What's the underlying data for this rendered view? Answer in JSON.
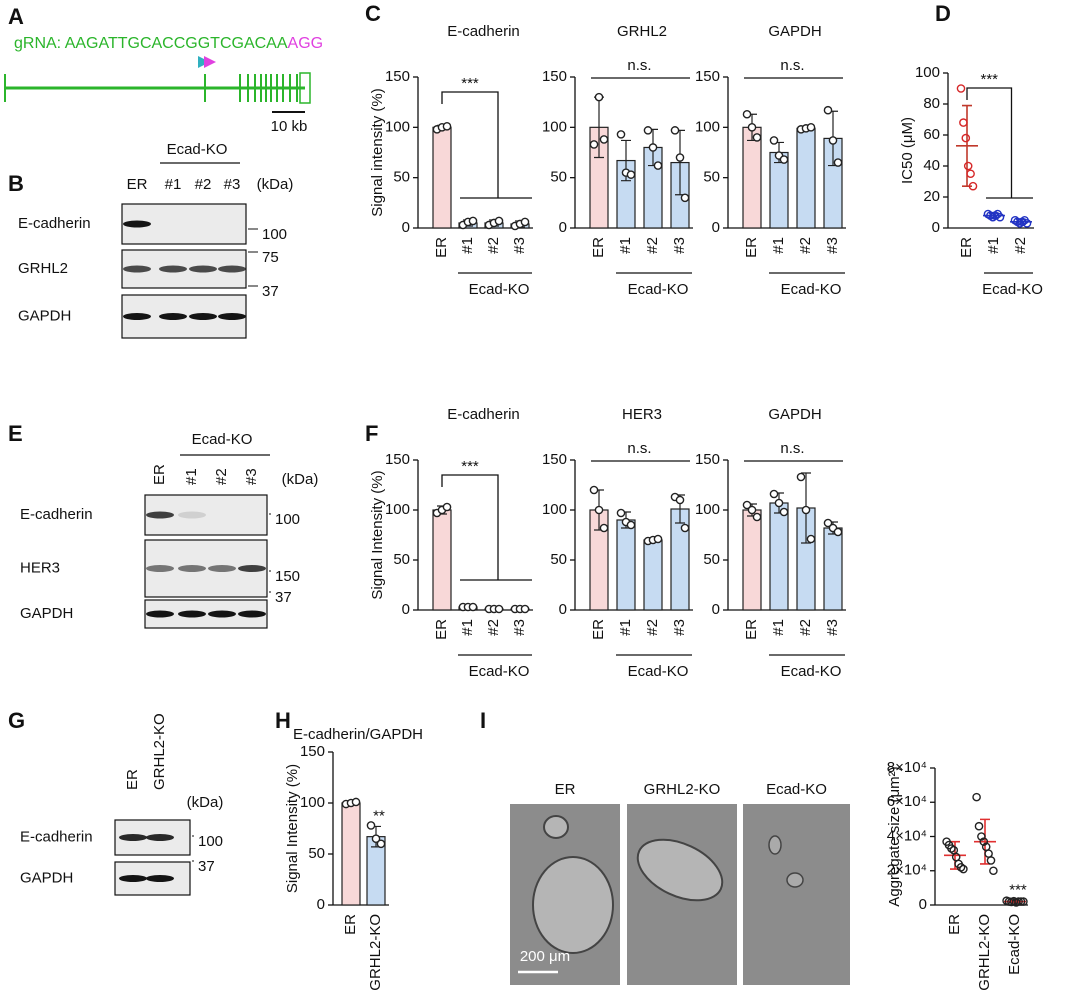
{
  "panel_labels": [
    "A",
    "B",
    "C",
    "D",
    "E",
    "F",
    "G",
    "H",
    "I"
  ],
  "gene": {
    "grna": "gRNA: AAGATTGCACCGGTCGACAA",
    "pam": "AGG",
    "scale": "10 kb"
  },
  "blots": [
    {
      "group": "Ecad-KO",
      "lanes": [
        "ER",
        "#1",
        "#2",
        "#3"
      ],
      "unit": "(kDa)",
      "rows": [
        "E-cadherin",
        "GRHL2",
        "GAPDH"
      ],
      "markers": [
        100,
        75,
        37
      ]
    },
    {
      "group": "Ecad-KO",
      "lanes": [
        "ER",
        "#1",
        "#2",
        "#3"
      ],
      "unit": "(kDa)",
      "rows": [
        "E-cadherin",
        "HER3",
        "GAPDH"
      ],
      "markers": [
        100,
        150,
        37
      ]
    },
    {
      "lanes": [
        "ER",
        "GRHL2-KO"
      ],
      "unit": "(kDa)",
      "rows": [
        "E-cadherin",
        "GAPDH"
      ],
      "markers": [
        100,
        37
      ]
    }
  ],
  "images": {
    "labels": [
      "ER",
      "GRHL2-KO",
      "Ecad-KO"
    ],
    "scale": "200 μm"
  },
  "chart_data": [
    {
      "type": "bar",
      "title": "E-cadherin",
      "ylabel": "Signal intensity (%)",
      "categories": [
        "ER",
        "#1",
        "#2",
        "#3"
      ],
      "group": "Ecad-KO",
      "colors": [
        "#f8d8d8",
        "#c6dbf2",
        "#c6dbf2",
        "#c6dbf2"
      ],
      "values": [
        100,
        5,
        5,
        4
      ],
      "errors": [
        2,
        3,
        3,
        3
      ],
      "points": [
        [
          98,
          100,
          101
        ],
        [
          3,
          6,
          7
        ],
        [
          3,
          5,
          7
        ],
        [
          2,
          4,
          6
        ]
      ],
      "ylim": [
        0,
        150
      ],
      "yticks": [
        0,
        50,
        100,
        150
      ],
      "significance": "***"
    },
    {
      "type": "bar",
      "title": "GRHL2",
      "categories": [
        "ER",
        "#1",
        "#2",
        "#3"
      ],
      "group": "Ecad-KO",
      "colors": [
        "#f8d8d8",
        "#c6dbf2",
        "#c6dbf2",
        "#c6dbf2"
      ],
      "values": [
        100,
        67,
        80,
        65
      ],
      "errors": [
        30,
        20,
        18,
        32
      ],
      "points": [
        [
          83,
          130,
          88
        ],
        [
          93,
          55,
          53
        ],
        [
          97,
          80,
          62
        ],
        [
          97,
          70,
          30
        ]
      ],
      "ylim": [
        0,
        150
      ],
      "yticks": [
        0,
        50,
        100,
        150
      ],
      "significance": "n.s."
    },
    {
      "type": "bar",
      "title": "GAPDH",
      "categories": [
        "ER",
        "#1",
        "#2",
        "#3"
      ],
      "group": "Ecad-KO",
      "colors": [
        "#f8d8d8",
        "#c6dbf2",
        "#c6dbf2",
        "#c6dbf2"
      ],
      "values": [
        100,
        75,
        99,
        89
      ],
      "errors": [
        13,
        10,
        2,
        27
      ],
      "points": [
        [
          113,
          100,
          90
        ],
        [
          87,
          72,
          68
        ],
        [
          98,
          99,
          100
        ],
        [
          117,
          87,
          65
        ]
      ],
      "ylim": [
        0,
        150
      ],
      "yticks": [
        0,
        50,
        100,
        150
      ],
      "significance": "n.s."
    },
    {
      "type": "dot",
      "ylabel": "IC50 (μM)",
      "categories": [
        "ER",
        "#1",
        "#2"
      ],
      "group": "Ecad-KO",
      "colors": [
        "#c0392b",
        "#2b3bbf",
        "#2b3bbf"
      ],
      "point_colors": [
        "#d62728",
        "#2233c4",
        "#2233c4"
      ],
      "values": [
        53,
        8,
        4
      ],
      "errors": [
        26,
        1.5,
        1.5
      ],
      "points": [
        [
          90,
          68,
          58,
          40,
          35,
          27
        ],
        [
          9,
          8,
          7,
          8,
          9,
          7
        ],
        [
          5,
          4,
          3,
          4,
          5,
          3
        ]
      ],
      "ylim": [
        0,
        100
      ],
      "yticks": [
        0,
        20,
        40,
        60,
        80,
        100
      ],
      "significance": "***"
    },
    {
      "type": "bar",
      "title": "E-cadherin",
      "ylabel": "Signal Intensity (%)",
      "categories": [
        "ER",
        "#1",
        "#2",
        "#3"
      ],
      "group": "Ecad-KO",
      "colors": [
        "#f8d8d8",
        "#c6dbf2",
        "#c6dbf2",
        "#c6dbf2"
      ],
      "values": [
        100,
        3,
        1,
        1
      ],
      "errors": [
        4,
        0.5,
        0.5,
        0.5
      ],
      "points": [
        [
          97,
          100,
          103
        ],
        [
          3,
          3,
          3
        ],
        [
          1,
          1,
          1
        ],
        [
          1,
          1,
          1
        ]
      ],
      "ylim": [
        0,
        150
      ],
      "yticks": [
        0,
        50,
        100,
        150
      ],
      "significance": "***"
    },
    {
      "type": "bar",
      "title": "HER3",
      "categories": [
        "ER",
        "#1",
        "#2",
        "#3"
      ],
      "group": "Ecad-KO",
      "colors": [
        "#f8d8d8",
        "#c6dbf2",
        "#c6dbf2",
        "#c6dbf2"
      ],
      "values": [
        100,
        90,
        70,
        101
      ],
      "errors": [
        20,
        8,
        2,
        14
      ],
      "points": [
        [
          120,
          100,
          82
        ],
        [
          97,
          88,
          85
        ],
        [
          69,
          70,
          71
        ],
        [
          113,
          110,
          82
        ]
      ],
      "ylim": [
        0,
        150
      ],
      "yticks": [
        0,
        50,
        100,
        150
      ],
      "significance": "n.s."
    },
    {
      "type": "bar",
      "title": "GAPDH",
      "categories": [
        "ER",
        "#1",
        "#2",
        "#3"
      ],
      "group": "Ecad-KO",
      "colors": [
        "#f8d8d8",
        "#c6dbf2",
        "#c6dbf2",
        "#c6dbf2"
      ],
      "values": [
        100,
        107,
        102,
        82
      ],
      "errors": [
        6,
        10,
        35,
        6
      ],
      "points": [
        [
          105,
          100,
          93
        ],
        [
          116,
          107,
          98
        ],
        [
          133,
          100,
          71
        ],
        [
          87,
          82,
          78
        ]
      ],
      "ylim": [
        0,
        150
      ],
      "yticks": [
        0,
        50,
        100,
        150
      ],
      "significance": "n.s."
    },
    {
      "type": "bar",
      "title": "E-cadherin/GAPDH",
      "ylabel": "Signal Intensity (%)",
      "categories": [
        "ER",
        "GRHL2-KO"
      ],
      "colors": [
        "#f8d8d8",
        "#c6dbf2"
      ],
      "values": [
        100,
        67
      ],
      "errors": [
        2,
        10
      ],
      "points": [
        [
          99,
          100,
          101
        ],
        [
          78,
          65,
          60
        ]
      ],
      "ylim": [
        0,
        150
      ],
      "yticks": [
        0,
        50,
        100,
        150
      ],
      "significance": "**"
    },
    {
      "type": "dot",
      "ylabel": "Aggregate size (μm²)",
      "categories": [
        "ER",
        "GRHL2-KO",
        "Ecad-KO"
      ],
      "colors": [
        "#e03030",
        "#e03030",
        "#e03030"
      ],
      "point_colors": [
        "#222222",
        "#222222",
        "#222222"
      ],
      "values": [
        29000,
        37000,
        2000
      ],
      "errors": [
        8000,
        13000,
        500
      ],
      "points": [
        [
          37000,
          35000,
          33000,
          32000,
          28000,
          24000,
          22000,
          21000
        ],
        [
          63000,
          46000,
          40000,
          37000,
          34000,
          30000,
          26000,
          20000
        ],
        [
          2500,
          2000,
          1800,
          2200,
          1500,
          2000,
          2000,
          2000
        ]
      ],
      "ylim": [
        0,
        80000
      ],
      "yticks": [
        0,
        {
          "value": 20000,
          "label": "2×10⁴"
        },
        {
          "value": 40000,
          "label": "4×10⁴"
        },
        {
          "value": 60000,
          "label": "6×10⁴"
        },
        {
          "value": 80000,
          "label": "8×10⁴"
        }
      ],
      "significance": "***"
    }
  ]
}
